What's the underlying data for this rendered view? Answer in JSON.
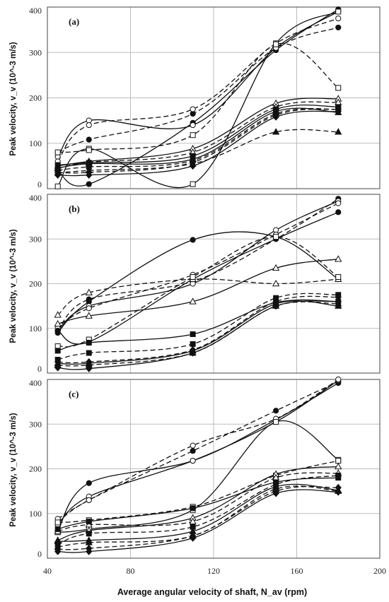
{
  "figure": {
    "xlabel": "Average angular velocity of shaft, N_av (rpm)",
    "ylabel": "Peak velocity, v_v (10^-3 m/s)"
  },
  "chart_data": [
    {
      "type": "line",
      "panel_label": "(a)",
      "xlim": [
        40,
        200
      ],
      "ylim": [
        0,
        400
      ],
      "x_ticks": [
        "40",
        "80",
        "120",
        "160",
        "200"
      ],
      "y_ticks": [
        "0",
        "100",
        "200",
        "300",
        "400"
      ],
      "grid": true,
      "series": [
        {
          "marker": "circle-filled",
          "dash": false,
          "values": [
            [
              45,
              40
            ],
            [
              60,
              10
            ],
            [
              110,
              145
            ],
            [
              150,
              305
            ],
            [
              180,
              395
            ]
          ]
        },
        {
          "marker": "circle-filled",
          "dash": true,
          "values": [
            [
              45,
              80
            ],
            [
              60,
              108
            ],
            [
              110,
              165
            ],
            [
              150,
              310
            ],
            [
              180,
              355
            ]
          ]
        },
        {
          "marker": "circle-open",
          "dash": false,
          "values": [
            [
              45,
              70
            ],
            [
              60,
              150
            ],
            [
              110,
              140
            ],
            [
              150,
              310
            ],
            [
              180,
              390
            ]
          ]
        },
        {
          "marker": "circle-open",
          "dash": true,
          "values": [
            [
              45,
              60
            ],
            [
              60,
              140
            ],
            [
              110,
              175
            ],
            [
              150,
              320
            ],
            [
              180,
              375
            ]
          ]
        },
        {
          "marker": "square-open",
          "dash": false,
          "values": [
            [
              45,
              5
            ],
            [
              60,
              88
            ],
            [
              110,
              10
            ],
            [
              150,
              320
            ],
            [
              180,
              390
            ]
          ]
        },
        {
          "marker": "square-open",
          "dash": true,
          "values": [
            [
              45,
              80
            ],
            [
              60,
              85
            ],
            [
              110,
              118
            ],
            [
              150,
              318
            ],
            [
              180,
              222
            ]
          ]
        },
        {
          "marker": "triangle-open",
          "dash": false,
          "values": [
            [
              45,
              50
            ],
            [
              60,
              60
            ],
            [
              110,
              88
            ],
            [
              150,
              188
            ],
            [
              180,
              198
            ]
          ]
        },
        {
          "marker": "triangle-open",
          "dash": true,
          "values": [
            [
              45,
              45
            ],
            [
              60,
              58
            ],
            [
              110,
              80
            ],
            [
              150,
              180
            ],
            [
              180,
              190
            ]
          ]
        },
        {
          "marker": "triangle-filled",
          "dash": true,
          "values": [
            [
              45,
              35
            ],
            [
              60,
              40
            ],
            [
              110,
              55
            ],
            [
              150,
              125
            ],
            [
              180,
              125
            ]
          ]
        },
        {
          "marker": "triangle-filled",
          "dash": false,
          "values": [
            [
              45,
              45
            ],
            [
              60,
              55
            ],
            [
              110,
              65
            ],
            [
              150,
              170
            ],
            [
              180,
              168
            ]
          ]
        },
        {
          "marker": "square-filled",
          "dash": false,
          "values": [
            [
              45,
              52
            ],
            [
              60,
              57
            ],
            [
              110,
              72
            ],
            [
              150,
              175
            ],
            [
              180,
              180
            ]
          ]
        },
        {
          "marker": "square-filled",
          "dash": true,
          "values": [
            [
              45,
              40
            ],
            [
              60,
              48
            ],
            [
              110,
              62
            ],
            [
              150,
              165
            ],
            [
              180,
              175
            ]
          ]
        },
        {
          "marker": "diamond-filled",
          "dash": false,
          "values": [
            [
              45,
              30
            ],
            [
              60,
              30
            ],
            [
              110,
              50
            ],
            [
              150,
              158
            ],
            [
              180,
              170
            ]
          ]
        },
        {
          "marker": "diamond-filled",
          "dash": true,
          "values": [
            [
              45,
              36
            ],
            [
              60,
              36
            ],
            [
              110,
              58
            ],
            [
              150,
              162
            ],
            [
              180,
              175
            ]
          ]
        }
      ]
    },
    {
      "type": "line",
      "panel_label": "(b)",
      "xlim": [
        40,
        200
      ],
      "ylim": [
        0,
        400
      ],
      "x_ticks": [],
      "y_ticks": [
        "0",
        "100",
        "200",
        "300",
        "400"
      ],
      "grid": true,
      "series": [
        {
          "marker": "circle-filled",
          "dash": false,
          "values": [
            [
              45,
              90
            ],
            [
              60,
              160
            ],
            [
              110,
              298
            ],
            [
              150,
              305
            ],
            [
              180,
              210
            ]
          ]
        },
        {
          "marker": "circle-filled",
          "dash": true,
          "values": [
            [
              45,
              95
            ],
            [
              60,
              165
            ],
            [
              110,
              205
            ],
            [
              150,
              300
            ],
            [
              180,
              390
            ]
          ]
        },
        {
          "marker": "circle-open",
          "dash": false,
          "values": [
            [
              45,
              95
            ],
            [
              60,
              150
            ],
            [
              110,
              200
            ],
            [
              150,
              320
            ],
            [
              180,
              385
            ]
          ]
        },
        {
          "marker": "circle-open",
          "dash": true,
          "values": [
            [
              45,
              100
            ],
            [
              60,
              145
            ],
            [
              110,
              220
            ],
            [
              150,
              310
            ],
            [
              180,
              380
            ]
          ]
        },
        {
          "marker": "circle-filled",
          "dash": false,
          "values": [
            [
              45,
              95
            ],
            [
              60,
              70
            ],
            [
              110,
              210
            ],
            [
              150,
              300
            ],
            [
              180,
              360
            ]
          ]
        },
        {
          "marker": "triangle-open",
          "dash": false,
          "values": [
            [
              45,
              110
            ],
            [
              60,
              128
            ],
            [
              110,
              160
            ],
            [
              150,
              235
            ],
            [
              180,
              255
            ]
          ]
        },
        {
          "marker": "triangle-open",
          "dash": true,
          "values": [
            [
              45,
              130
            ],
            [
              60,
              180
            ],
            [
              110,
              210
            ],
            [
              150,
              200
            ],
            [
              180,
              210
            ]
          ]
        },
        {
          "marker": "square-open",
          "dash": true,
          "values": [
            [
              45,
              60
            ],
            [
              60,
              75
            ],
            [
              110,
              215
            ],
            [
              150,
              305
            ],
            [
              180,
              215
            ]
          ]
        },
        {
          "marker": "square-filled",
          "dash": false,
          "values": [
            [
              45,
              50
            ],
            [
              60,
              68
            ],
            [
              110,
              87
            ],
            [
              150,
              158
            ],
            [
              180,
              160
            ]
          ]
        },
        {
          "marker": "square-filled",
          "dash": true,
          "values": [
            [
              45,
              30
            ],
            [
              60,
              45
            ],
            [
              110,
              65
            ],
            [
              150,
              168
            ],
            [
              180,
              175
            ]
          ]
        },
        {
          "marker": "triangle-filled",
          "dash": false,
          "values": [
            [
              45,
              22
            ],
            [
              60,
              22
            ],
            [
              110,
              50
            ],
            [
              150,
              155
            ],
            [
              180,
              150
            ]
          ]
        },
        {
          "marker": "triangle-filled",
          "dash": true,
          "values": [
            [
              45,
              18
            ],
            [
              60,
              18
            ],
            [
              110,
              45
            ],
            [
              150,
              150
            ],
            [
              180,
              155
            ]
          ]
        },
        {
          "marker": "diamond-filled",
          "dash": false,
          "values": [
            [
              45,
              12
            ],
            [
              60,
              10
            ],
            [
              110,
              45
            ],
            [
              150,
              150
            ],
            [
              180,
              160
            ]
          ]
        },
        {
          "marker": "diamond-filled",
          "dash": true,
          "values": [
            [
              45,
              25
            ],
            [
              60,
              25
            ],
            [
              110,
              52
            ],
            [
              150,
              160
            ],
            [
              180,
              170
            ]
          ]
        }
      ]
    },
    {
      "type": "line",
      "panel_label": "(c)",
      "xlim": [
        40,
        200
      ],
      "ylim": [
        0,
        400
      ],
      "x_ticks": [
        "40",
        "80",
        "120",
        "160",
        "200"
      ],
      "y_ticks": [
        "0",
        "100",
        "200",
        "300",
        "400"
      ],
      "grid": true,
      "series": [
        {
          "marker": "circle-filled",
          "dash": false,
          "values": [
            [
              45,
              60
            ],
            [
              60,
              168
            ],
            [
              110,
              218
            ],
            [
              150,
              310
            ],
            [
              180,
              392
            ]
          ]
        },
        {
          "marker": "circle-filled",
          "dash": true,
          "values": [
            [
              45,
              80
            ],
            [
              60,
              130
            ],
            [
              110,
              240
            ],
            [
              150,
              330
            ],
            [
              180,
              395
            ]
          ]
        },
        {
          "marker": "circle-open",
          "dash": false,
          "values": [
            [
              45,
              75
            ],
            [
              60,
              138
            ],
            [
              110,
              218
            ],
            [
              150,
              305
            ],
            [
              180,
              398
            ]
          ]
        },
        {
          "marker": "circle-open",
          "dash": true,
          "values": [
            [
              45,
              88
            ],
            [
              60,
              130
            ],
            [
              110,
              252
            ],
            [
              150,
              312
            ],
            [
              180,
              400
            ]
          ]
        },
        {
          "marker": "square-open",
          "dash": false,
          "values": [
            [
              45,
              58
            ],
            [
              60,
              65
            ],
            [
              110,
              108
            ],
            [
              150,
              305
            ],
            [
              180,
              220
            ]
          ]
        },
        {
          "marker": "square-open",
          "dash": true,
          "values": [
            [
              45,
              80
            ],
            [
              60,
              85
            ],
            [
              110,
              115
            ],
            [
              150,
              185
            ],
            [
              180,
              218
            ]
          ]
        },
        {
          "marker": "triangle-open",
          "dash": false,
          "values": [
            [
              45,
              40
            ],
            [
              60,
              62
            ],
            [
              110,
              90
            ],
            [
              150,
              188
            ],
            [
              180,
              205
            ]
          ]
        },
        {
          "marker": "triangle-open",
          "dash": true,
          "values": [
            [
              45,
              60
            ],
            [
              60,
              75
            ],
            [
              110,
              82
            ],
            [
              150,
              180
            ],
            [
              180,
              190
            ]
          ]
        },
        {
          "marker": "square-filled",
          "dash": false,
          "values": [
            [
              45,
              65
            ],
            [
              60,
              82
            ],
            [
              110,
              112
            ],
            [
              150,
              170
            ],
            [
              180,
              180
            ]
          ]
        },
        {
          "marker": "square-filled",
          "dash": true,
          "values": [
            [
              45,
              30
            ],
            [
              60,
              55
            ],
            [
              110,
              70
            ],
            [
              150,
              165
            ],
            [
              180,
              185
            ]
          ]
        },
        {
          "marker": "triangle-filled",
          "dash": false,
          "values": [
            [
              45,
              38
            ],
            [
              60,
              40
            ],
            [
              110,
              60
            ],
            [
              150,
              160
            ],
            [
              180,
              152
            ]
          ]
        },
        {
          "marker": "triangle-filled",
          "dash": true,
          "values": [
            [
              45,
              25
            ],
            [
              60,
              35
            ],
            [
              110,
              50
            ],
            [
              150,
              155
            ],
            [
              180,
              150
            ]
          ]
        },
        {
          "marker": "diamond-filled",
          "dash": false,
          "values": [
            [
              45,
              15
            ],
            [
              60,
              15
            ],
            [
              110,
              45
            ],
            [
              150,
              145
            ],
            [
              180,
              148
            ]
          ]
        },
        {
          "marker": "diamond-filled",
          "dash": true,
          "values": [
            [
              45,
              20
            ],
            [
              60,
              22
            ],
            [
              110,
              50
            ],
            [
              150,
              150
            ],
            [
              180,
              158
            ]
          ]
        }
      ]
    }
  ]
}
